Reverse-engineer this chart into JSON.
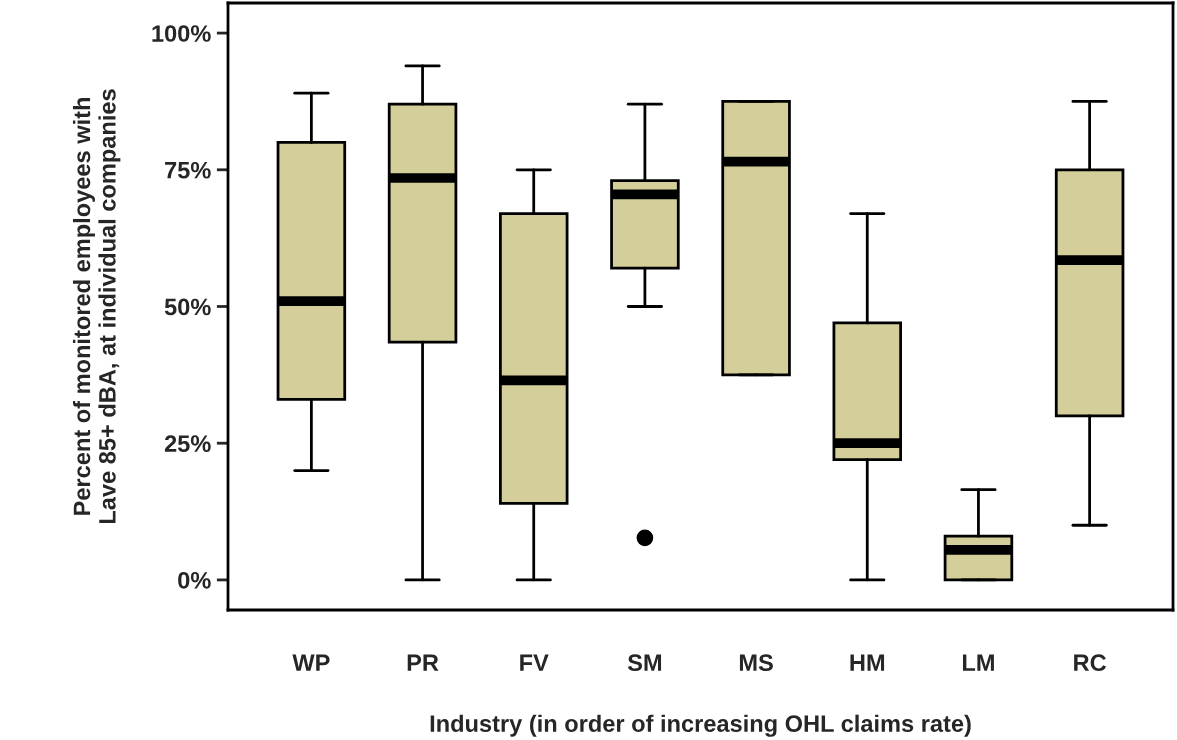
{
  "chart_data": {
    "type": "box",
    "xlabel": "Industry (in order of increasing OHL claims rate)",
    "ylabel": "Percent of monitored employees with\nLave 85+ dBA, at individual companies",
    "categories": [
      "WP",
      "PR",
      "FV",
      "SM",
      "MS",
      "HM",
      "LM",
      "RC"
    ],
    "color": "#d4cf9a",
    "boxes": [
      {
        "low": 20,
        "q1": 33,
        "median": 51,
        "q3": 80,
        "high": 89
      },
      {
        "low": 0,
        "q1": 43.5,
        "median": 73.5,
        "q3": 87,
        "high": 94
      },
      {
        "low": 0,
        "q1": 14,
        "median": 36.5,
        "q3": 67,
        "high": 75
      },
      {
        "low": 50,
        "q1": 57,
        "median": 70.5,
        "q3": 73,
        "high": 87,
        "outliers": [
          7.7
        ]
      },
      {
        "low": 37.5,
        "q1": 37.5,
        "median": 76.5,
        "q3": 87.5,
        "high": 87.5
      },
      {
        "low": 0,
        "q1": 22,
        "median": 25,
        "q3": 47,
        "high": 67
      },
      {
        "low": 0,
        "q1": 0,
        "median": 5.5,
        "q3": 8,
        "high": 16.5
      },
      {
        "low": 10,
        "q1": 30,
        "median": 58.5,
        "q3": 75,
        "high": 87.5
      }
    ],
    "ylim": [
      -5.5,
      105.5
    ],
    "yticks": [
      {
        "value": 0,
        "label": "0%"
      },
      {
        "value": 25,
        "label": "25%"
      },
      {
        "value": 50,
        "label": "50%"
      },
      {
        "value": 75,
        "label": "75%"
      },
      {
        "value": 100,
        "label": "100%"
      }
    ],
    "grid": false
  }
}
